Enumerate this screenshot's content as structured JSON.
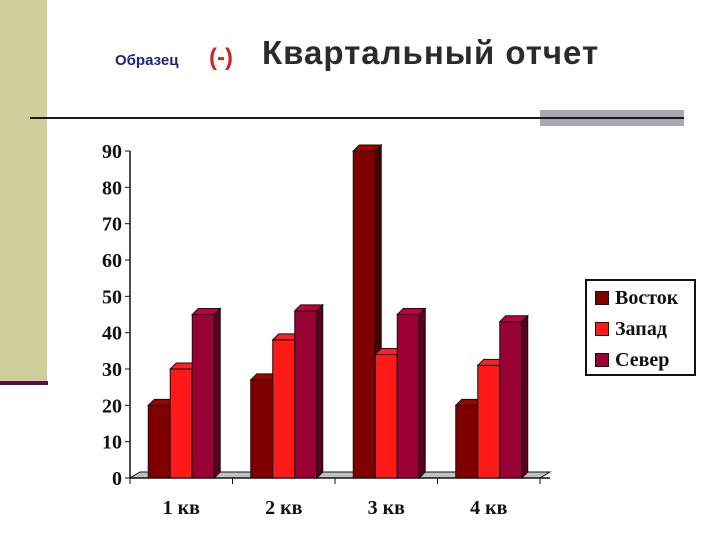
{
  "slide": {
    "sample_label": "Образец",
    "sample_mark": "(-)",
    "title": "Квартальный отчет"
  },
  "colors": {
    "side_strip": "#cfcf9c",
    "sample_label": "#1a237e",
    "sample_mark": "#c62828"
  },
  "chart_data": {
    "type": "bar",
    "title": "",
    "xlabel": "",
    "ylabel": "",
    "categories": [
      "1 кв",
      "2 кв",
      "3 кв",
      "4 кв"
    ],
    "ylim": [
      0,
      90
    ],
    "yticks": [
      "0",
      "10",
      "20",
      "30",
      "40",
      "50",
      "60",
      "70",
      "80",
      "90"
    ],
    "legend_position": "right",
    "series": [
      {
        "name": "Восток",
        "values": [
          20,
          27,
          90,
          20
        ],
        "color": "#800000"
      },
      {
        "name": "Запад",
        "values": [
          30,
          38,
          34,
          31
        ],
        "color": "#ff1a1a"
      },
      {
        "name": "Север",
        "values": [
          45,
          46,
          45,
          43
        ],
        "color": "#990033"
      }
    ]
  }
}
